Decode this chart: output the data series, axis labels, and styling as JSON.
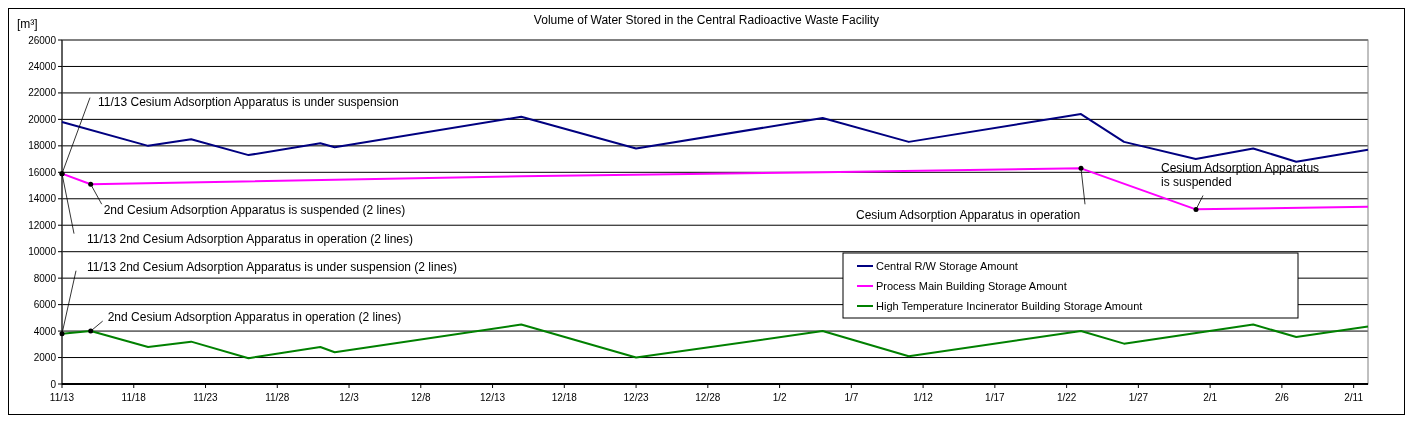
{
  "chart_data": {
    "type": "line",
    "title": "Volume of Water Stored in the Central Radioactive Waste Facility",
    "ylabel": "[m³]",
    "categories": [
      "11/13",
      null,
      null,
      null,
      null,
      "11/18",
      null,
      null,
      null,
      null,
      "11/23",
      null,
      null,
      null,
      null,
      "11/28",
      null,
      null,
      null,
      null,
      "12/3",
      null,
      null,
      null,
      null,
      "12/8",
      null,
      null,
      null,
      null,
      "12/13",
      null,
      null,
      null,
      null,
      "12/18",
      null,
      null,
      null,
      null,
      "12/23",
      null,
      null,
      null,
      null,
      "12/28",
      null,
      null,
      null,
      null,
      "1/2",
      null,
      null,
      null,
      null,
      "1/7",
      null,
      null,
      null,
      null,
      "1/12",
      null,
      null,
      null,
      null,
      "1/17",
      null,
      null,
      null,
      null,
      "1/22",
      null,
      null,
      null,
      null,
      "1/27",
      null,
      null,
      null,
      null,
      "2/1",
      null,
      null,
      null,
      null,
      "2/6",
      null,
      null,
      null,
      null,
      "2/11",
      null
    ],
    "ylim": [
      0,
      26000
    ],
    "yticks": [
      0,
      2000,
      4000,
      6000,
      8000,
      10000,
      12000,
      14000,
      16000,
      18000,
      20000,
      22000,
      24000,
      26000
    ],
    "grid": "y",
    "legend": "right",
    "marker": "none",
    "line_style": "solid",
    "series": [
      {
        "name": "Central R/W Storage Amount",
        "color": "#000080",
        "values": [
          19800,
          null,
          null,
          null,
          null,
          null,
          18000,
          null,
          null,
          18500,
          null,
          null,
          null,
          17300,
          null,
          null,
          null,
          null,
          18200,
          17900,
          null,
          null,
          null,
          null,
          null,
          null,
          null,
          null,
          null,
          null,
          null,
          null,
          20200,
          null,
          null,
          null,
          null,
          null,
          null,
          null,
          17800,
          null,
          null,
          null,
          null,
          null,
          null,
          null,
          null,
          null,
          null,
          null,
          null,
          20100,
          null,
          null,
          null,
          null,
          null,
          18300,
          null,
          null,
          null,
          null,
          null,
          null,
          null,
          null,
          null,
          null,
          null,
          20400,
          null,
          null,
          18300,
          null,
          null,
          null,
          null,
          17000,
          null,
          null,
          null,
          17800,
          null,
          null,
          16800,
          null,
          null,
          null,
          null,
          17700
        ]
      },
      {
        "name": "Process Main Building Storage Amount",
        "color": "#ff00ff",
        "values": [
          15900,
          null,
          15100,
          null,
          null,
          null,
          null,
          null,
          null,
          null,
          null,
          null,
          null,
          null,
          null,
          null,
          null,
          null,
          null,
          null,
          null,
          null,
          null,
          null,
          null,
          null,
          null,
          null,
          null,
          null,
          null,
          null,
          15700,
          null,
          null,
          null,
          null,
          null,
          null,
          null,
          null,
          null,
          null,
          null,
          null,
          null,
          null,
          null,
          null,
          null,
          null,
          null,
          null,
          16000,
          null,
          null,
          null,
          null,
          null,
          null,
          null,
          null,
          null,
          null,
          null,
          null,
          null,
          null,
          null,
          null,
          null,
          16300,
          null,
          null,
          null,
          null,
          null,
          null,
          null,
          13200,
          null,
          null,
          null,
          null,
          null,
          null,
          null,
          null,
          null,
          null,
          null,
          13400
        ]
      },
      {
        "name": "High Temperature Incinerator Building Storage Amount",
        "color": "#008000",
        "values": [
          3800,
          null,
          4000,
          null,
          null,
          null,
          2800,
          null,
          null,
          3200,
          null,
          null,
          null,
          1950,
          null,
          null,
          null,
          null,
          2800,
          2400,
          null,
          null,
          null,
          null,
          null,
          null,
          null,
          null,
          null,
          null,
          null,
          null,
          4500,
          null,
          null,
          null,
          null,
          null,
          null,
          null,
          2000,
          null,
          null,
          null,
          null,
          null,
          null,
          null,
          null,
          null,
          null,
          null,
          null,
          4000,
          null,
          null,
          null,
          null,
          null,
          2100,
          null,
          null,
          null,
          null,
          null,
          null,
          null,
          null,
          null,
          null,
          null,
          4000,
          null,
          null,
          3050,
          null,
          null,
          null,
          null,
          null,
          null,
          null,
          null,
          4500,
          null,
          null,
          3550,
          null,
          null,
          null,
          null,
          4350
        ]
      }
    ],
    "annotations": [
      {
        "text": "11/13 Cesium Adsorption Apparatus is under suspension",
        "x": "11/13",
        "y": 15900
      },
      "2nd Cesium Adsorption Apparatus is suspended (2 lines)",
      {
        "text": "11/13 2nd Cesium Adsorption Apparatus in operation (2 lines)",
        "x": "11/13",
        "y": 15900
      },
      {
        "text": "11/13 2nd Cesium Adsorption Apparatus is under suspension (2 lines)",
        "x": "11/13",
        "y": 3800
      },
      "2nd Cesium Adsorption Apparatus in operation (2 lines)",
      "Cesium Adsorption Apparatus in operation",
      "Cesium Adsorption Apparatus\nis suspended"
    ]
  }
}
